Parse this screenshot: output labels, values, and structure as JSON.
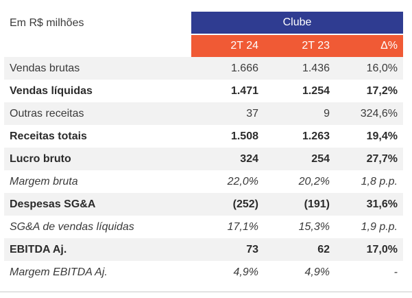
{
  "caption": "Em R$ milhões",
  "group_header": "Clube",
  "columns": [
    "2T 24",
    "2T 23",
    "Δ%"
  ],
  "rows": [
    {
      "label": "Vendas brutas",
      "v1": "1.666",
      "v2": "1.436",
      "v3": "16,0%",
      "style": "normal"
    },
    {
      "label": "Vendas líquidas",
      "v1": "1.471",
      "v2": "1.254",
      "v3": "17,2%",
      "style": "bold"
    },
    {
      "label": "Outras receitas",
      "v1": "37",
      "v2": "9",
      "v3": "324,6%",
      "style": "normal"
    },
    {
      "label": "Receitas totais",
      "v1": "1.508",
      "v2": "1.263",
      "v3": "19,4%",
      "style": "bold"
    },
    {
      "label": "Lucro bruto",
      "v1": "324",
      "v2": "254",
      "v3": "27,7%",
      "style": "bold"
    },
    {
      "label": "Margem bruta",
      "v1": "22,0%",
      "v2": "20,2%",
      "v3": "1,8 p.p.",
      "style": "italic"
    },
    {
      "label": "Despesas SG&A",
      "v1": "(252)",
      "v2": "(191)",
      "v3": "31,6%",
      "style": "bold"
    },
    {
      "label": "SG&A de vendas líquidas",
      "v1": "17,1%",
      "v2": "15,3%",
      "v3": "1,9 p.p.",
      "style": "italic"
    },
    {
      "label": "EBITDA Aj.",
      "v1": "73",
      "v2": "62",
      "v3": "17,0%",
      "style": "bold"
    },
    {
      "label": "Margem EBITDA Aj.",
      "v1": "4,9%",
      "v2": "4,9%",
      "v3": "-",
      "style": "italic"
    }
  ],
  "colors": {
    "group_header_bg": "#2f3c91",
    "column_header_bg": "#f05a35",
    "row_shade": "#f2f2f2"
  }
}
